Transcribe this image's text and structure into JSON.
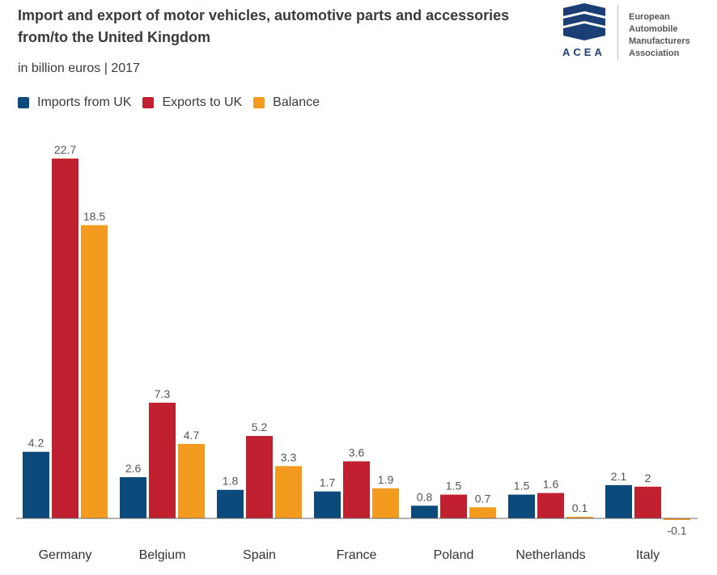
{
  "header": {
    "title": "Import and export of motor vehicles, automotive parts and accessories from/to the United Kingdom",
    "subtitle": "in billion euros | 2017"
  },
  "logo": {
    "acronym": "ACEA",
    "lines": [
      "European",
      "Automobile",
      "Manufacturers",
      "Association"
    ],
    "color": "#1b3f75"
  },
  "chart_data": {
    "type": "bar",
    "categories": [
      "Germany",
      "Belgium",
      "Spain",
      "France",
      "Poland",
      "Netherlands",
      "Italy"
    ],
    "series": [
      {
        "name": "Imports from UK",
        "color": "#0d4a7c",
        "values": [
          4.2,
          2.6,
          1.8,
          1.7,
          0.8,
          1.5,
          2.1
        ]
      },
      {
        "name": "Exports to UK",
        "color": "#c0202f",
        "values": [
          22.7,
          7.3,
          5.2,
          3.6,
          1.5,
          1.6,
          2
        ]
      },
      {
        "name": "Balance",
        "color": "#f39b1f",
        "values": [
          18.5,
          4.7,
          3.3,
          1.9,
          0.7,
          0.1,
          -0.1
        ]
      }
    ],
    "title": "Import and export of motor vehicles, automotive parts and accessories from/to the United Kingdom",
    "ylabel": "in billion euros",
    "ylim": [
      -0.1,
      22.7
    ],
    "grid": false,
    "legend": "top-left"
  }
}
